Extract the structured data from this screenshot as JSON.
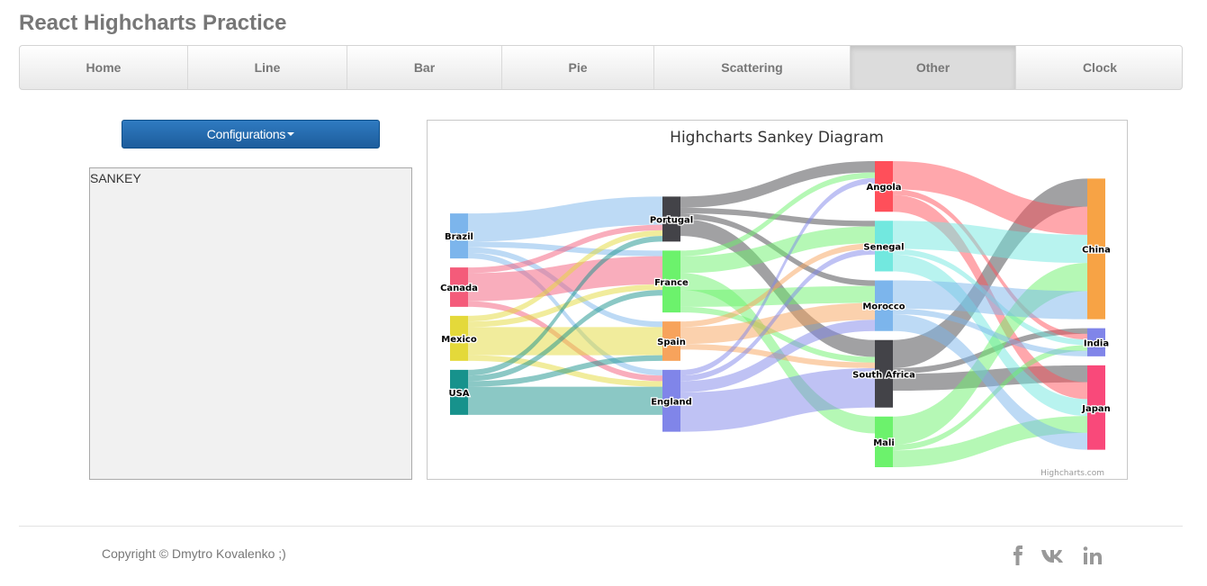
{
  "app": {
    "title": "React Highcharts Practice"
  },
  "nav": {
    "items": [
      {
        "label": "Home",
        "active": false
      },
      {
        "label": "Line",
        "active": false
      },
      {
        "label": "Bar",
        "active": false
      },
      {
        "label": "Pie",
        "active": false
      },
      {
        "label": "Scattering",
        "active": false
      },
      {
        "label": "Other",
        "active": true
      },
      {
        "label": "Clock",
        "active": false
      }
    ]
  },
  "config": {
    "button_label": "Configurations",
    "selected_type": "SANKEY"
  },
  "chart_data": {
    "type": "sankey",
    "title": "Highcharts Sankey Diagram",
    "credits": "Highcharts.com",
    "nodes": [
      {
        "id": "Brazil",
        "color": "#7cb5ec",
        "column": 0
      },
      {
        "id": "Canada",
        "color": "#f45b7a",
        "column": 0
      },
      {
        "id": "Mexico",
        "color": "#e4d93a",
        "column": 0
      },
      {
        "id": "USA",
        "color": "#17928c",
        "column": 0
      },
      {
        "id": "Portugal",
        "color": "#434348",
        "column": 1
      },
      {
        "id": "France",
        "color": "#6cf26c",
        "column": 1
      },
      {
        "id": "Spain",
        "color": "#f7a35c",
        "column": 1
      },
      {
        "id": "England",
        "color": "#8085e9",
        "column": 1
      },
      {
        "id": "Angola",
        "color": "#ff4f5a",
        "column": 2
      },
      {
        "id": "Senegal",
        "color": "#72e8df",
        "column": 2
      },
      {
        "id": "Morocco",
        "color": "#7cb5ec",
        "column": 2
      },
      {
        "id": "South Africa",
        "color": "#434348",
        "column": 2
      },
      {
        "id": "Mali",
        "color": "#6cf26c",
        "column": 2
      },
      {
        "id": "China",
        "color": "#f7a345",
        "column": 3
      },
      {
        "id": "India",
        "color": "#8085e9",
        "column": 3
      },
      {
        "id": "Japan",
        "color": "#f9497a",
        "column": 3
      }
    ],
    "links": [
      [
        "Brazil",
        "Portugal",
        5
      ],
      [
        "Brazil",
        "France",
        1
      ],
      [
        "Brazil",
        "Spain",
        1
      ],
      [
        "Brazil",
        "England",
        1
      ],
      [
        "Canada",
        "Portugal",
        1
      ],
      [
        "Canada",
        "France",
        5
      ],
      [
        "Canada",
        "England",
        1
      ],
      [
        "Mexico",
        "Portugal",
        1
      ],
      [
        "Mexico",
        "France",
        1
      ],
      [
        "Mexico",
        "Spain",
        5
      ],
      [
        "Mexico",
        "England",
        1
      ],
      [
        "USA",
        "Portugal",
        1
      ],
      [
        "USA",
        "France",
        1
      ],
      [
        "USA",
        "Spain",
        1
      ],
      [
        "USA",
        "England",
        5
      ],
      [
        "Portugal",
        "Angola",
        2
      ],
      [
        "Portugal",
        "Senegal",
        1
      ],
      [
        "Portugal",
        "Morocco",
        1
      ],
      [
        "Portugal",
        "South Africa",
        3
      ],
      [
        "France",
        "Angola",
        1
      ],
      [
        "France",
        "Senegal",
        3
      ],
      [
        "France",
        "Mali",
        3
      ],
      [
        "France",
        "Morocco",
        3
      ],
      [
        "France",
        "South Africa",
        1
      ],
      [
        "Spain",
        "Senegal",
        1
      ],
      [
        "Spain",
        "Morocco",
        3
      ],
      [
        "Spain",
        "South Africa",
        1
      ],
      [
        "England",
        "Angola",
        1
      ],
      [
        "England",
        "Senegal",
        1
      ],
      [
        "England",
        "Morocco",
        2
      ],
      [
        "England",
        "South Africa",
        7
      ],
      [
        "South Africa",
        "China",
        5
      ],
      [
        "South Africa",
        "India",
        1
      ],
      [
        "South Africa",
        "Japan",
        3
      ],
      [
        "Angola",
        "China",
        5
      ],
      [
        "Angola",
        "India",
        1
      ],
      [
        "Angola",
        "Japan",
        3
      ],
      [
        "Senegal",
        "China",
        5
      ],
      [
        "Senegal",
        "India",
        1
      ],
      [
        "Senegal",
        "Japan",
        3
      ],
      [
        "Mali",
        "China",
        5
      ],
      [
        "Mali",
        "India",
        1
      ],
      [
        "Mali",
        "Japan",
        3
      ],
      [
        "Morocco",
        "China",
        5
      ],
      [
        "Morocco",
        "India",
        1
      ],
      [
        "Morocco",
        "Japan",
        3
      ]
    ]
  },
  "footer": {
    "copyright": "Copyright © Dmytro Kovalenko ;)",
    "social": [
      {
        "name": "facebook-icon",
        "glyph": "f"
      },
      {
        "name": "vk-icon",
        "glyph": "vk"
      },
      {
        "name": "linkedin-icon",
        "glyph": "in"
      }
    ]
  }
}
